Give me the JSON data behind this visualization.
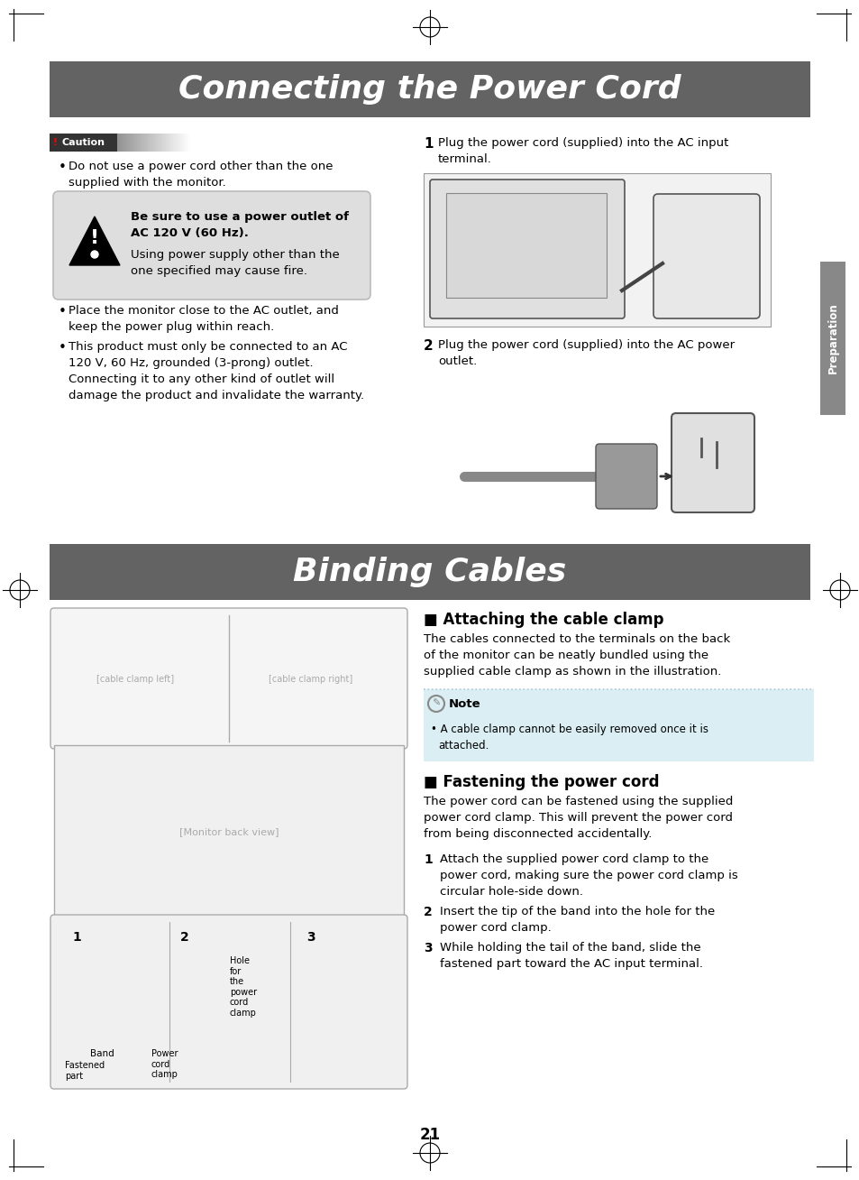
{
  "page_bg": "#ffffff",
  "header1_bg": "#636363",
  "header1_text": "Connecting the Power Cord",
  "header1_text_color": "#ffffff",
  "header2_bg": "#636363",
  "header2_text": "Binding Cables",
  "header2_text_color": "#ffffff",
  "caution_bg_left": "#333333",
  "caution_bg_right": "#888888",
  "caution_label": "Caution",
  "caution_excl": "!",
  "caution_bullet": "Do not use a power cord other than the one\nsupplied with the monitor.",
  "warning_box_bg": "#dedede",
  "warning_bold_line1": "Be sure to use a power outlet of",
  "warning_bold_line2": "AC 120 V (60 Hz).",
  "warning_normal": "Using power supply other than the\none specified may cause fire.",
  "bullet1_line1": "Place the monitor close to the AC outlet, and",
  "bullet1_line2": "keep the power plug within reach.",
  "bullet2_line1": "This product must only be connected to an AC",
  "bullet2_line2": "120 V, 60 Hz, grounded (3-prong) outlet.",
  "bullet2_line3": "Connecting it to any other kind of outlet will",
  "bullet2_line4": "damage the product and invalidate the warranty.",
  "step1_num": "1",
  "step1_text_line1": "Plug the power cord (supplied) into the AC input",
  "step1_text_line2": "terminal.",
  "step2_num": "2",
  "step2_text_line1": "Plug the power cord (supplied) into the AC power",
  "step2_text_line2": "outlet.",
  "section1_title": " Attaching the cable clamp",
  "section1_body_line1": "The cables connected to the terminals on the back",
  "section1_body_line2": "of the monitor can be neatly bundled using the",
  "section1_body_line3": "supplied cable clamp as shown in the illustration.",
  "note_bg": "#daeef3",
  "note_border": "#aaccdd",
  "note_label": "Note",
  "note_bullet": "A cable clamp cannot be easily removed once it is",
  "note_bullet2": "attached.",
  "section2_title": " Fastening the power cord",
  "section2_body_line1": "The power cord can be fastened using the supplied",
  "section2_body_line2": "power cord clamp. This will prevent the power cord",
  "section2_body_line3": "from being disconnected accidentally.",
  "stepa1_num": "1",
  "stepa1_line1": "Attach the supplied power cord clamp to the",
  "stepa1_line2": "power cord, making sure the power cord clamp is",
  "stepa1_line3": "circular hole-side down.",
  "stepa2_num": "2",
  "stepa2_line1": "Insert the tip of the band into the hole for the",
  "stepa2_line2": "power cord clamp.",
  "stepa3_num": "3",
  "stepa3_line1": "While holding the tail of the band, slide the",
  "stepa3_line2": "fastened part toward the AC input terminal.",
  "sidebar_bg": "#888888",
  "sidebar_text": "Preparation",
  "page_number": "21",
  "mark_color": "#000000",
  "img_border": "#999999",
  "img_bg": "#f2f2f2"
}
